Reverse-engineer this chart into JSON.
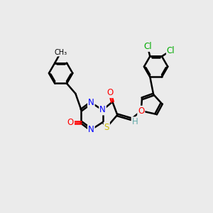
{
  "bg_color": "#ebebeb",
  "bond_color": "#000000",
  "bond_width": 1.8,
  "atom_colors": {
    "N": "#0000ff",
    "O": "#ff0000",
    "S": "#ccbb00",
    "Cl": "#00aa00",
    "H": "#66aaaa",
    "C": "#000000"
  },
  "fs": 8.5,
  "fs_small": 7.5,
  "title": ""
}
